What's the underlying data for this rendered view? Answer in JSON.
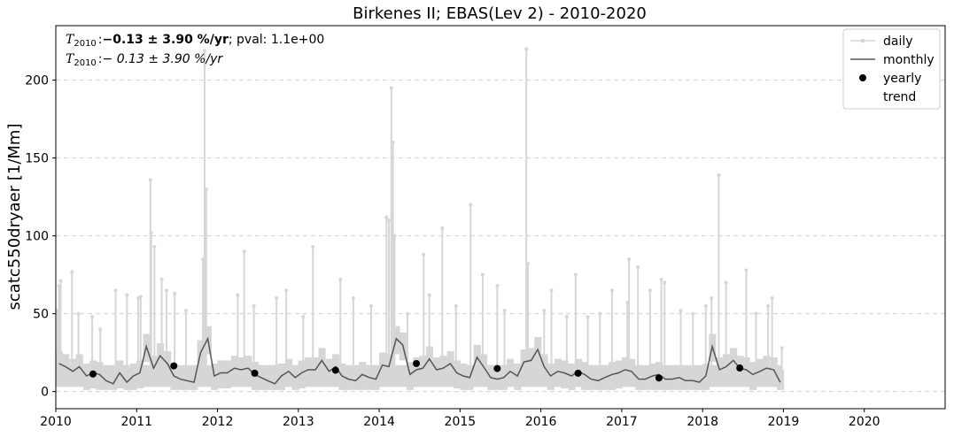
{
  "chart_data": {
    "type": "line",
    "title": "Birkenes II; EBAS(Lev 2) - 2010-2020",
    "xlabel": "",
    "ylabel": "scatc550dryaer [1/Mm]",
    "xlim": [
      2010,
      2021
    ],
    "ylim": [
      -11,
      235
    ],
    "x_ticks": [
      "2010",
      "2011",
      "2012",
      "2013",
      "2014",
      "2015",
      "2016",
      "2017",
      "2018",
      "2019",
      "2020"
    ],
    "y_ticks": [
      "0",
      "50",
      "100",
      "150",
      "200"
    ],
    "grid": "horizontal-dashed",
    "legend_position": "top-right",
    "legend": [
      "daily",
      "monthly",
      "yearly",
      "trend"
    ],
    "annotations": [
      {
        "prefix": "T",
        "sub": "2010",
        "sep": ":",
        "bold": "−0.13 ± 3.90 %/yr",
        "rest": "; pval: 1.1e+00"
      },
      {
        "prefix": "T",
        "sub": "2010",
        "sep": ":",
        "bold": "",
        "rest": "− 0.13 ± 3.90 %/yr"
      }
    ],
    "series": [
      {
        "name": "monthly",
        "color": "#555555",
        "x": [
          2010.04,
          2010.12,
          2010.21,
          2010.29,
          2010.38,
          2010.46,
          2010.54,
          2010.62,
          2010.71,
          2010.79,
          2010.88,
          2010.96,
          2011.04,
          2011.12,
          2011.21,
          2011.29,
          2011.38,
          2011.46,
          2011.54,
          2011.62,
          2011.71,
          2011.79,
          2011.88,
          2011.96,
          2012.04,
          2012.12,
          2012.21,
          2012.29,
          2012.38,
          2012.46,
          2012.54,
          2012.62,
          2012.71,
          2012.79,
          2012.88,
          2012.96,
          2013.04,
          2013.12,
          2013.21,
          2013.29,
          2013.38,
          2013.46,
          2013.54,
          2013.62,
          2013.71,
          2013.79,
          2013.88,
          2013.96,
          2014.04,
          2014.12,
          2014.21,
          2014.29,
          2014.38,
          2014.46,
          2014.54,
          2014.62,
          2014.71,
          2014.79,
          2014.88,
          2014.96,
          2015.04,
          2015.12,
          2015.21,
          2015.29,
          2015.38,
          2015.46,
          2015.54,
          2015.62,
          2015.71,
          2015.79,
          2015.88,
          2015.96,
          2016.04,
          2016.12,
          2016.21,
          2016.29,
          2016.38,
          2016.46,
          2016.54,
          2016.62,
          2016.71,
          2016.79,
          2016.88,
          2016.96,
          2017.04,
          2017.12,
          2017.21,
          2017.29,
          2017.38,
          2017.46,
          2017.54,
          2017.62,
          2017.71,
          2017.79,
          2017.88,
          2017.96,
          2018.04,
          2018.12,
          2018.21,
          2018.29,
          2018.38,
          2018.46,
          2018.54,
          2018.62,
          2018.71,
          2018.79,
          2018.88,
          2018.96
        ],
        "values": [
          18,
          16,
          13,
          16,
          10,
          12,
          11,
          7,
          5,
          12,
          6,
          10,
          12,
          29,
          15,
          23,
          18,
          10,
          8,
          7,
          6,
          25,
          34,
          10,
          12,
          12,
          15,
          14,
          15,
          11,
          9,
          7,
          5,
          10,
          13,
          9,
          12,
          14,
          14,
          20,
          13,
          16,
          10,
          8,
          7,
          11,
          9,
          8,
          17,
          16,
          34,
          30,
          11,
          14,
          15,
          21,
          14,
          15,
          18,
          12,
          10,
          9,
          22,
          16,
          9,
          8,
          9,
          13,
          10,
          19,
          20,
          27,
          16,
          10,
          13,
          12,
          10,
          13,
          11,
          8,
          7,
          9,
          11,
          12,
          14,
          13,
          8,
          8,
          10,
          11,
          8,
          8,
          9,
          7,
          7,
          6,
          10,
          29,
          14,
          16,
          20,
          15,
          14,
          11,
          13,
          15,
          14,
          6
        ]
      },
      {
        "name": "yearly",
        "color": "#000000",
        "x": [
          2010.46,
          2011.46,
          2012.46,
          2013.46,
          2014.46,
          2015.46,
          2016.46,
          2017.46,
          2018.46
        ],
        "values": [
          11.3,
          16.5,
          11.8,
          13.7,
          18.0,
          14.8,
          11.8,
          8.7,
          15.1
        ]
      },
      {
        "name": "daily",
        "color": "#d6d6d6",
        "base": 12,
        "x": [
          2010.02,
          2010.04,
          2010.06,
          2010.2,
          2010.28,
          2010.45,
          2010.55,
          2010.74,
          2010.88,
          2011.02,
          2011.05,
          2011.17,
          2011.18,
          2011.22,
          2011.31,
          2011.37,
          2011.47,
          2011.61,
          2011.82,
          2011.84,
          2011.86,
          2012.25,
          2012.33,
          2012.45,
          2012.73,
          2012.85,
          2013.06,
          2013.18,
          2013.52,
          2013.68,
          2013.9,
          2014.09,
          2014.12,
          2014.15,
          2014.17,
          2014.19,
          2014.35,
          2014.55,
          2014.62,
          2014.78,
          2014.95,
          2015.13,
          2015.28,
          2015.46,
          2015.55,
          2015.82,
          2015.84,
          2016.04,
          2016.13,
          2016.32,
          2016.43,
          2016.58,
          2016.73,
          2016.88,
          2017.07,
          2017.09,
          2017.2,
          2017.35,
          2017.49,
          2017.53,
          2017.73,
          2017.88,
          2018.04,
          2018.11,
          2018.2,
          2018.29,
          2018.54,
          2018.66,
          2018.81,
          2018.86,
          2018.98
        ],
        "values": [
          52,
          68,
          71,
          77,
          50,
          48,
          40,
          65,
          62,
          60,
          61,
          136,
          102,
          93,
          72,
          65,
          63,
          52,
          85,
          219,
          130,
          62,
          90,
          55,
          60,
          65,
          48,
          93,
          72,
          60,
          55,
          112,
          110,
          195,
          160,
          100,
          50,
          88,
          62,
          105,
          55,
          120,
          75,
          68,
          52,
          220,
          82,
          52,
          65,
          48,
          75,
          48,
          50,
          65,
          57,
          85,
          80,
          65,
          72,
          70,
          52,
          50,
          55,
          60,
          139,
          70,
          78,
          50,
          55,
          60,
          28
        ]
      }
    ]
  }
}
